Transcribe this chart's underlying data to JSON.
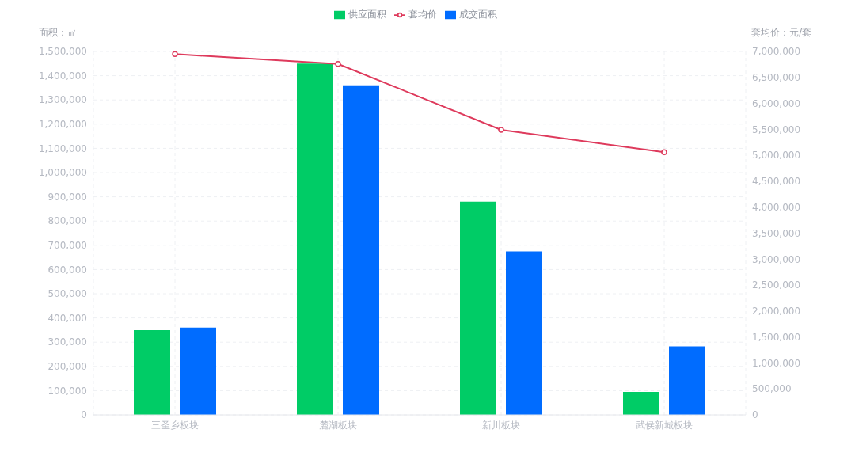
{
  "chart_data": {
    "type": "bar",
    "categories": [
      "三圣乡板块",
      "麓湖板块",
      "新川板块",
      "武侯新城板块"
    ],
    "ylabel": "面积：㎡",
    "y2label": "套均价：元/套",
    "series": [
      {
        "name": "供应面积",
        "color": "#00cc66",
        "values": [
          350000,
          1450000,
          880000,
          95000
        ]
      },
      {
        "name": "成交面积",
        "color": "#006cff",
        "values": [
          360000,
          1360000,
          675000,
          283000
        ]
      },
      {
        "name": "套均价",
        "type": "line",
        "axis": "y2",
        "color": "#de3a5c",
        "marker": "circle",
        "values": [
          6950000,
          6760000,
          5490000,
          5060000
        ]
      }
    ],
    "ylim": [
      0,
      1500000
    ],
    "yticks": [
      {
        "value": 0,
        "label": "0"
      },
      {
        "value": 100000,
        "label": "100,000"
      },
      {
        "value": 200000,
        "label": "200,000"
      },
      {
        "value": 300000,
        "label": "300,000"
      },
      {
        "value": 400000,
        "label": "400,000"
      },
      {
        "value": 500000,
        "label": "500,000"
      },
      {
        "value": 600000,
        "label": "600,000"
      },
      {
        "value": 700000,
        "label": "700,000"
      },
      {
        "value": 800000,
        "label": "800,000"
      },
      {
        "value": 900000,
        "label": "900,000"
      },
      {
        "value": 1000000,
        "label": "1,000,000"
      },
      {
        "value": 1100000,
        "label": "1,100,000"
      },
      {
        "value": 1200000,
        "label": "1,200,000"
      },
      {
        "value": 1300000,
        "label": "1,300,000"
      },
      {
        "value": 1400000,
        "label": "1,400,000"
      },
      {
        "value": 1500000,
        "label": "1,500,000"
      }
    ],
    "y2lim": [
      0,
      7000000
    ],
    "y2ticks": [
      {
        "value": 0,
        "label": "0"
      },
      {
        "value": 500000,
        "label": "500,000"
      },
      {
        "value": 1000000,
        "label": "1,000,000"
      },
      {
        "value": 1500000,
        "label": "1,500,000"
      },
      {
        "value": 2000000,
        "label": "2,000,000"
      },
      {
        "value": 2500000,
        "label": "2,500,000"
      },
      {
        "value": 3000000,
        "label": "3,000,000"
      },
      {
        "value": 3500000,
        "label": "3,500,000"
      },
      {
        "value": 4000000,
        "label": "4,000,000"
      },
      {
        "value": 4500000,
        "label": "4,500,000"
      },
      {
        "value": 5000000,
        "label": "5,000,000"
      },
      {
        "value": 5500000,
        "label": "5,500,000"
      },
      {
        "value": 6000000,
        "label": "6,000,000"
      },
      {
        "value": 6500000,
        "label": "6,500,000"
      },
      {
        "value": 7000000,
        "label": "7,000,000"
      }
    ],
    "grid": true,
    "legend": "top"
  }
}
